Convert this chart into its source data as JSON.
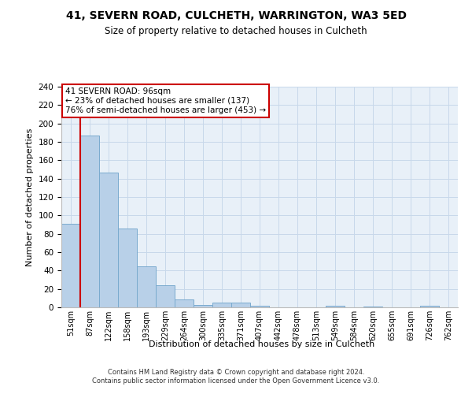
{
  "title1": "41, SEVERN ROAD, CULCHETH, WARRINGTON, WA3 5ED",
  "title2": "Size of property relative to detached houses in Culcheth",
  "xlabel": "Distribution of detached houses by size in Culcheth",
  "ylabel": "Number of detached properties",
  "categories": [
    "51sqm",
    "87sqm",
    "122sqm",
    "158sqm",
    "193sqm",
    "229sqm",
    "264sqm",
    "300sqm",
    "335sqm",
    "371sqm",
    "407sqm",
    "442sqm",
    "478sqm",
    "513sqm",
    "549sqm",
    "584sqm",
    "620sqm",
    "655sqm",
    "691sqm",
    "726sqm",
    "762sqm"
  ],
  "values": [
    91,
    187,
    147,
    86,
    45,
    24,
    9,
    3,
    5,
    5,
    2,
    0,
    0,
    0,
    2,
    0,
    1,
    0,
    0,
    2,
    0
  ],
  "bar_color": "#b8d0e8",
  "bar_edge_color": "#7aaace",
  "grid_color": "#c8d8ea",
  "background_color": "#e8f0f8",
  "vline_color": "#cc0000",
  "annotation_box_text": "41 SEVERN ROAD: 96sqm\n← 23% of detached houses are smaller (137)\n76% of semi-detached houses are larger (453) →",
  "annotation_box_color": "#cc0000",
  "footer": "Contains HM Land Registry data © Crown copyright and database right 2024.\nContains public sector information licensed under the Open Government Licence v3.0.",
  "ylim": [
    0,
    240
  ],
  "yticks": [
    0,
    20,
    40,
    60,
    80,
    100,
    120,
    140,
    160,
    180,
    200,
    220,
    240
  ]
}
